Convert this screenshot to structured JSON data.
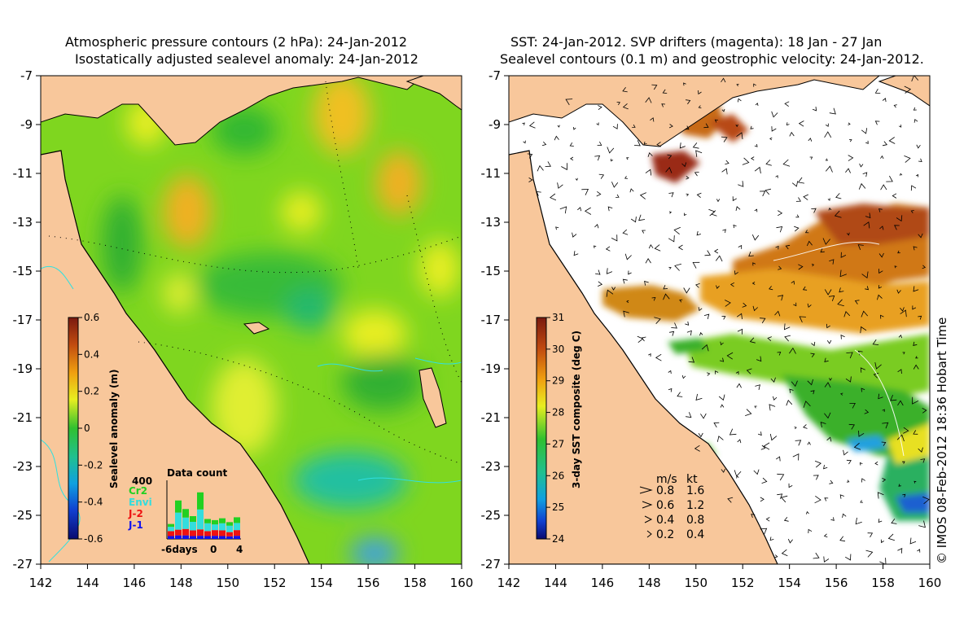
{
  "left_panel": {
    "title_line1": "Atmospheric pressure contours (2 hPa): 24-Jan-2012",
    "title_line2": "Isostatically adjusted sealevel anomaly: 24-Jan-2012",
    "colorbar": {
      "label": "Sealevel anomaly (m)",
      "ticks": [
        "0.6",
        "0.4",
        "0.2",
        "0",
        "-0.2",
        "-0.4",
        "-0.6"
      ]
    },
    "data_count": {
      "title": "Data count",
      "max_label": "400",
      "x_labels": [
        "-6days",
        "0",
        "4"
      ],
      "missions": [
        {
          "name": "Cr2",
          "color": "#22d022"
        },
        {
          "name": "Envi",
          "color": "#33dddd"
        },
        {
          "name": "J-2",
          "color": "#ee1111"
        },
        {
          "name": "J-1",
          "color": "#1111ee"
        }
      ],
      "bars": [
        {
          "j1": 20,
          "j2": 35,
          "envi": 30,
          "cr2": 20
        },
        {
          "j1": 25,
          "j2": 40,
          "envi": 120,
          "cr2": 85
        },
        {
          "j1": 25,
          "j2": 45,
          "envi": 80,
          "cr2": 60
        },
        {
          "j1": 20,
          "j2": 40,
          "envi": 60,
          "cr2": 40
        },
        {
          "j1": 22,
          "j2": 45,
          "envi": 140,
          "cr2": 120
        },
        {
          "j1": 20,
          "j2": 35,
          "envi": 55,
          "cr2": 30
        },
        {
          "j1": 22,
          "j2": 40,
          "envi": 40,
          "cr2": 30
        },
        {
          "j1": 20,
          "j2": 40,
          "envi": 50,
          "cr2": 35
        },
        {
          "j1": 18,
          "j2": 30,
          "envi": 45,
          "cr2": 25
        },
        {
          "j1": 22,
          "j2": 40,
          "envi": 50,
          "cr2": 40
        }
      ]
    }
  },
  "right_panel": {
    "title_line1": "SST: 24-Jan-2012. SVP drifters (magenta): 18 Jan - 27 Jan",
    "title_line2": "Sealevel contours (0.1 m) and geostrophic velocity: 24-Jan-2012.",
    "colorbar": {
      "label": "3-day SST composite (deg C)",
      "ticks": [
        "31",
        "30",
        "29",
        "28",
        "27",
        "26",
        "25",
        "24"
      ]
    },
    "velocity_legend": {
      "header_ms": "m/s",
      "header_kt": "kt",
      "rows": [
        {
          "ms": "0.8",
          "kt": "1.6"
        },
        {
          "ms": "0.6",
          "kt": "1.2"
        },
        {
          "ms": "0.4",
          "kt": "0.8"
        },
        {
          "ms": "0.2",
          "kt": "0.4"
        }
      ]
    }
  },
  "axes": {
    "y_ticks": [
      "-7",
      "-9",
      "-11",
      "-13",
      "-15",
      "-17",
      "-19",
      "-21",
      "-23",
      "-25",
      "-27"
    ],
    "x_ticks": [
      "142",
      "144",
      "146",
      "148",
      "150",
      "152",
      "154",
      "156",
      "158",
      "160"
    ]
  },
  "credit": "© IMOS 08-Feb-2012 18:36 Hobart Time",
  "colors": {
    "land": "#f8c79b",
    "coast_line": "#000000",
    "contour_cyan": "#30e0e0"
  }
}
